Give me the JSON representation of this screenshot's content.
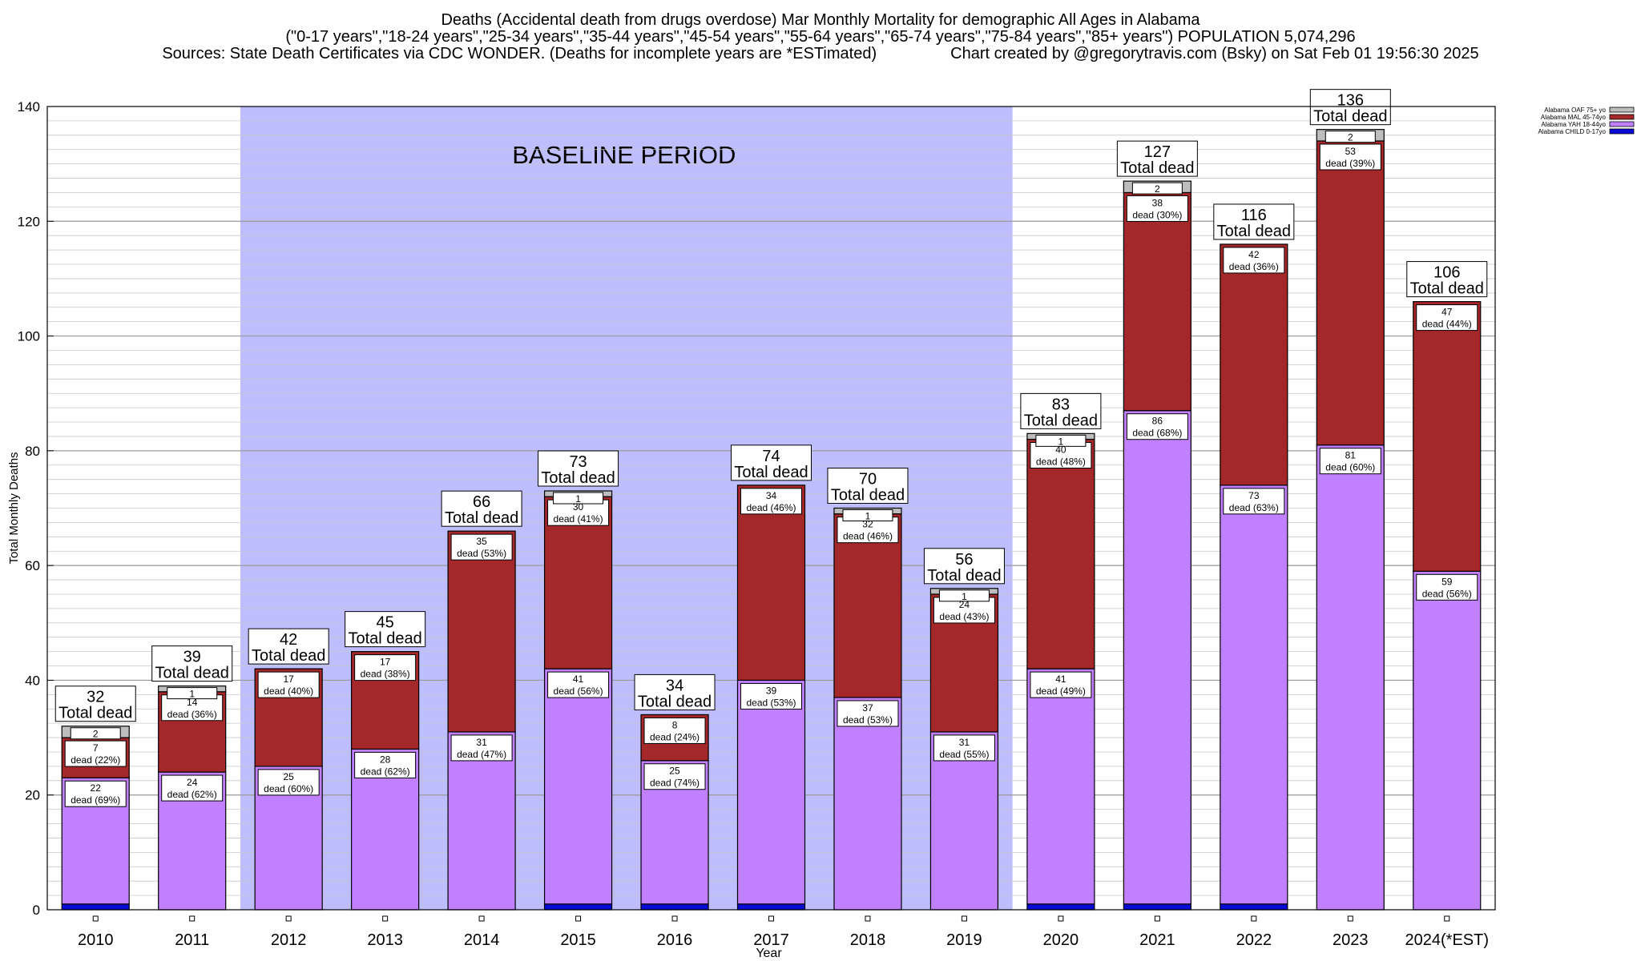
{
  "header": {
    "line1": "Deaths (Accidental death from drugs overdose) Mar Monthly Mortality for demographic All Ages in Alabama",
    "line2": "(\"0-17 years\",\"18-24 years\",\"25-34 years\",\"35-44 years\",\"45-54 years\",\"55-64 years\",\"65-74 years\",\"75-84 years\",\"85+ years\") POPULATION 5,074,296",
    "line3_sources": "Sources: State Death Certificates via CDC WONDER. (Deaths for incomplete years are *ESTimated)",
    "line3_credit": "Chart created by @gregorytravis.com (Bsky) on Sat Feb 01 19:56:30 2025"
  },
  "chart_data": {
    "type": "bar",
    "stacked": true,
    "xlabel": "Year",
    "ylabel": "Total Monthly Deaths",
    "ylim": [
      0,
      140
    ],
    "yticks": [
      0,
      20,
      40,
      60,
      80,
      100,
      120,
      140
    ],
    "grid": true,
    "legend_position": "top-right",
    "categories": [
      "2010",
      "2011",
      "2012",
      "2013",
      "2014",
      "2015",
      "2016",
      "2017",
      "2018",
      "2019",
      "2020",
      "2021",
      "2022",
      "2023",
      "2024(*EST)"
    ],
    "totals": [
      32,
      39,
      42,
      45,
      66,
      73,
      34,
      74,
      70,
      56,
      83,
      127,
      116,
      136,
      106
    ],
    "total_label_suffix": "Total dead",
    "segment_label_prefix": "dead",
    "series": [
      {
        "name": "Alabama CHILD 0-17yo",
        "color": "#0a0ad6",
        "values": [
          1,
          0,
          0,
          0,
          0,
          1,
          1,
          1,
          0,
          0,
          1,
          1,
          1,
          0,
          0
        ]
      },
      {
        "name": "Alabama YAH 18-44yo",
        "color": "#c080ff",
        "values": [
          22,
          24,
          25,
          28,
          31,
          41,
          25,
          39,
          37,
          31,
          41,
          86,
          73,
          81,
          59
        ],
        "percents": [
          "69%",
          "62%",
          "60%",
          "62%",
          "47%",
          "56%",
          "74%",
          "53%",
          "53%",
          "55%",
          "49%",
          "68%",
          "63%",
          "60%",
          "56%"
        ]
      },
      {
        "name": "Alabama MAL 45-74yo",
        "color": "#a4282a",
        "values": [
          7,
          14,
          17,
          17,
          35,
          30,
          8,
          34,
          32,
          24,
          40,
          38,
          42,
          53,
          47
        ],
        "percents": [
          "22%",
          "36%",
          "40%",
          "38%",
          "53%",
          "41%",
          "24%",
          "46%",
          "46%",
          "43%",
          "48%",
          "30%",
          "36%",
          "39%",
          "44%"
        ]
      },
      {
        "name": "Alabama OAF 75+ yo",
        "color": "#bdbdbd",
        "values": [
          2,
          1,
          0,
          0,
          0,
          1,
          0,
          0,
          1,
          1,
          1,
          2,
          0,
          2,
          0
        ]
      }
    ],
    "annotations": [
      {
        "text": "BASELINE PERIOD",
        "from": "2012",
        "to": "2019",
        "color": "#bebeff"
      }
    ]
  }
}
